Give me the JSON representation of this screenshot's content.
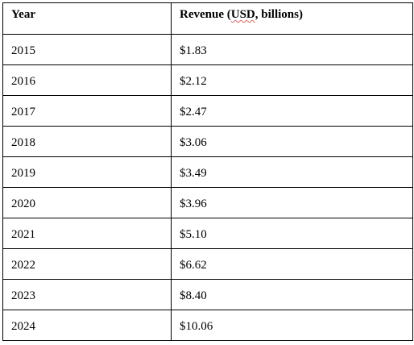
{
  "table": {
    "columns": {
      "year": "Year",
      "revenue_prefix": "Revenue (",
      "revenue_currency": "USD",
      "revenue_suffix": ", billions)"
    },
    "rows": [
      {
        "year": "2015",
        "revenue": "$1.83"
      },
      {
        "year": "2016",
        "revenue": "$2.12"
      },
      {
        "year": "2017",
        "revenue": "$2.47"
      },
      {
        "year": "2018",
        "revenue": "$3.06"
      },
      {
        "year": "2019",
        "revenue": "$3.49"
      },
      {
        "year": "2020",
        "revenue": "$3.96"
      },
      {
        "year": "2021",
        "revenue": "$5.10"
      },
      {
        "year": "2022",
        "revenue": "$6.62"
      },
      {
        "year": "2023",
        "revenue": "$8.40"
      },
      {
        "year": "2024",
        "revenue": "$10.06"
      }
    ]
  }
}
